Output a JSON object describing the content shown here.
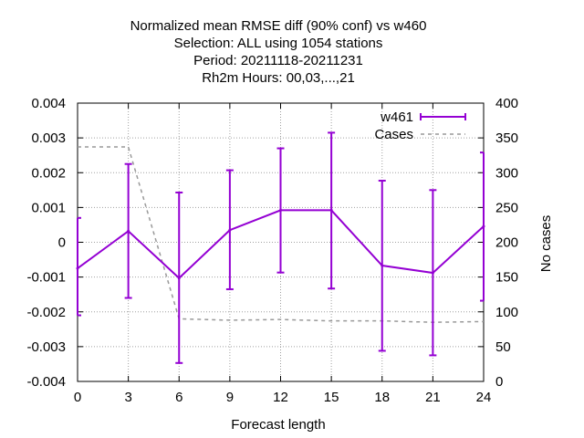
{
  "chart_data": {
    "type": "line",
    "title_lines": [
      "Normalized mean RMSE diff (90% conf) vs w460",
      "Selection: ALL using  1054 stations",
      "Period: 20211118-20211231",
      "Rh2m   Hours:  00,03,...,21"
    ],
    "xlabel": "Forecast length",
    "ylabel": "",
    "y2label": "No cases",
    "xlim": [
      0,
      24
    ],
    "ylim": [
      -0.004,
      0.004
    ],
    "y2lim": [
      0,
      400
    ],
    "xticks": [
      "0",
      "3",
      "6",
      "9",
      "12",
      "15",
      "18",
      "21",
      "24"
    ],
    "xtick_values": [
      0,
      3,
      6,
      9,
      12,
      15,
      18,
      21,
      24
    ],
    "yticks": [
      "0.004",
      "0.003",
      "0.002",
      "0.001",
      "0",
      "-0.001",
      "-0.002",
      "-0.003",
      "-0.004"
    ],
    "ytick_values": [
      0.004,
      0.003,
      0.002,
      0.001,
      0,
      -0.001,
      -0.002,
      -0.003,
      -0.004
    ],
    "y2ticks": [
      "400",
      "350",
      "300",
      "250",
      "200",
      "150",
      "100",
      "50",
      "0"
    ],
    "y2tick_values": [
      400,
      350,
      300,
      250,
      200,
      150,
      100,
      50,
      0
    ],
    "grid": true,
    "legend_position": "top-right",
    "series": [
      {
        "name": "w461",
        "color": "#9400d3",
        "style": "line-errorbars",
        "x": [
          0,
          3,
          6,
          9,
          12,
          15,
          18,
          21,
          24
        ],
        "y": [
          -0.00075,
          0.00032,
          -0.00103,
          0.00035,
          0.00092,
          0.00092,
          -0.00067,
          -0.00088,
          0.00046
        ],
        "err_low": [
          -0.0021,
          -0.0016,
          -0.00347,
          -0.00135,
          -0.00087,
          -0.00133,
          -0.00312,
          -0.00325,
          -0.00168
        ],
        "err_high": [
          0.0007,
          0.00225,
          0.00143,
          0.00207,
          0.0027,
          0.00315,
          0.00177,
          0.0015,
          0.00258
        ]
      },
      {
        "name": "Cases",
        "color": "#999999",
        "style": "dashed",
        "axis": "y2",
        "x": [
          0,
          3,
          6,
          9,
          12,
          15,
          18,
          21,
          24
        ],
        "y": [
          337,
          337,
          90,
          88,
          89,
          87,
          87,
          85,
          86
        ]
      }
    ]
  }
}
